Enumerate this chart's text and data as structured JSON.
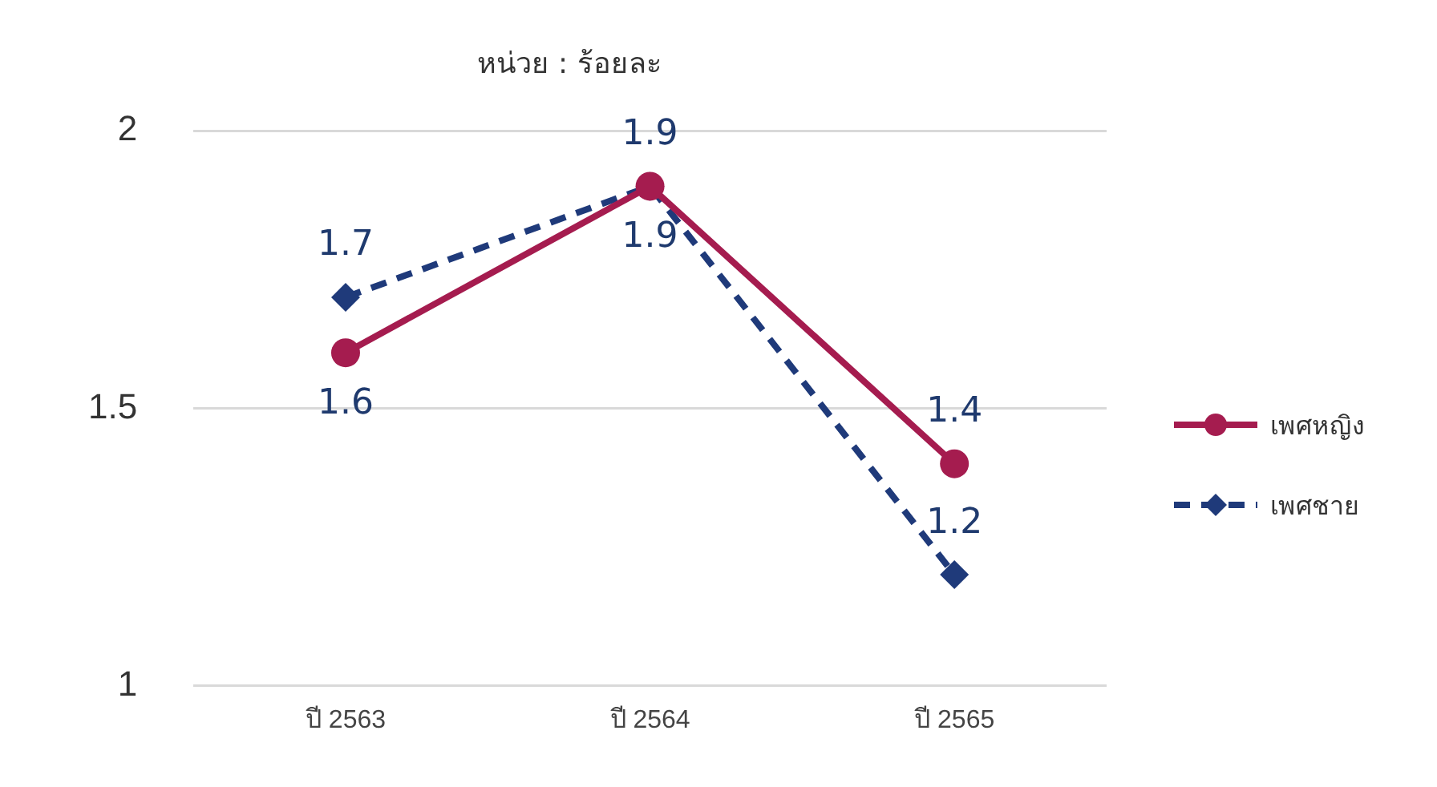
{
  "chart_data": {
    "type": "line",
    "title": "หน่วย : ร้อยละ",
    "categories": [
      "ปี 2563",
      "ปี 2564",
      "ปี 2565"
    ],
    "series": [
      {
        "name": "เพศหญิง",
        "color": "#a51c4f",
        "values": [
          1.6,
          1.9,
          1.4
        ],
        "marker": "circle",
        "line_style": "solid"
      },
      {
        "name": "เพศชาย",
        "color": "#1f3a7a",
        "values": [
          1.7,
          1.9,
          1.2
        ],
        "marker": "diamond",
        "line_style": "dashed"
      }
    ],
    "ylim": [
      1,
      2
    ],
    "yticks": [
      1,
      1.5,
      2
    ],
    "grid": "y",
    "legend": "right",
    "data_labels": true
  }
}
